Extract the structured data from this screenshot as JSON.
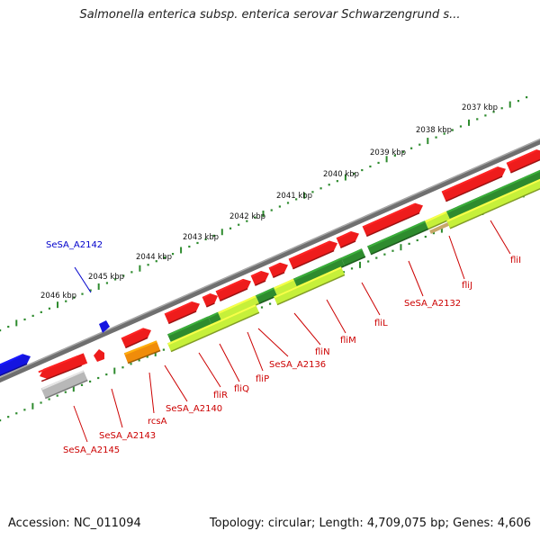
{
  "title": "Salmonella enterica subsp. enterica serovar Schwarzengrund s...",
  "footer": {
    "accession": "Accession: NC_011094",
    "summary": "Topology: circular; Length: 4,709,075 bp; Genes: 4,606"
  },
  "colors": {
    "forward_gene": "#ee1c1c",
    "reverse_gene": "#ee1c1c",
    "highlight_gene": "#1414e0",
    "dark_green": "#2e8b2e",
    "light_green": "#c6f03a",
    "orange": "#f08c0a",
    "gray": "#b8b8b8",
    "ruler_tick": "#2e8b2e",
    "label_red": "#cc0000",
    "label_blue": "#0000cc"
  },
  "kbp_labels": [
    "2037 kbp",
    "2038 kbp",
    "2039 kbp",
    "2040 kbp",
    "2041 kbp",
    "2042 kbp",
    "2043 kbp",
    "2044 kbp",
    "2045 kbp",
    "2046 kbp"
  ],
  "gene_labels": [
    {
      "text": "SeSA_A2142",
      "color": "blue"
    },
    {
      "text": "SeSA_A2145",
      "color": "red"
    },
    {
      "text": "SeSA_A2143",
      "color": "red"
    },
    {
      "text": "rcsA",
      "color": "red"
    },
    {
      "text": "SeSA_A2140",
      "color": "red"
    },
    {
      "text": "fliR",
      "color": "red"
    },
    {
      "text": "fliQ",
      "color": "red"
    },
    {
      "text": "fliP",
      "color": "red"
    },
    {
      "text": "SeSA_A2136",
      "color": "red"
    },
    {
      "text": "fliN",
      "color": "red"
    },
    {
      "text": "fliM",
      "color": "red"
    },
    {
      "text": "fliL",
      "color": "red"
    },
    {
      "text": "SeSA_A2132",
      "color": "red"
    },
    {
      "text": "fliJ",
      "color": "red"
    },
    {
      "text": "fliI",
      "color": "red"
    }
  ]
}
